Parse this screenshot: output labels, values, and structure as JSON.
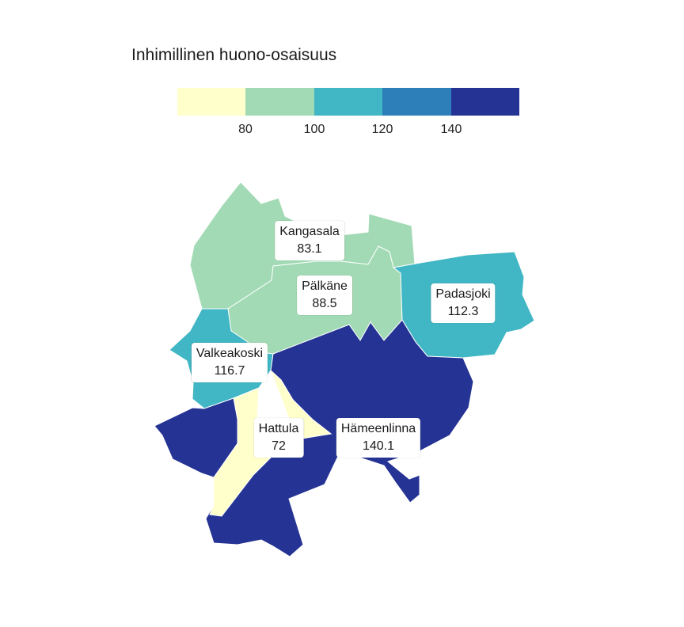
{
  "title": "Inhimillinen huono-osaisuus",
  "legend": {
    "colors": [
      "#ffffcc",
      "#a1dab4",
      "#41b6c4",
      "#2c7fb8",
      "#253494"
    ],
    "ticks": [
      "80",
      "100",
      "120",
      "140"
    ]
  },
  "regions": [
    {
      "name": "Kangasala",
      "value": "83.1",
      "color": "#a1dab4"
    },
    {
      "name": "Pälkäne",
      "value": "88.5",
      "color": "#a1dab4"
    },
    {
      "name": "Padasjoki",
      "value": "112.3",
      "color": "#41b6c4"
    },
    {
      "name": "Valkeakoski",
      "value": "116.7",
      "color": "#41b6c4"
    },
    {
      "name": "Hattula",
      "value": "72",
      "color": "#ffffcc"
    },
    {
      "name": "Hämeenlinna",
      "value": "140.1",
      "color": "#253494"
    }
  ]
}
